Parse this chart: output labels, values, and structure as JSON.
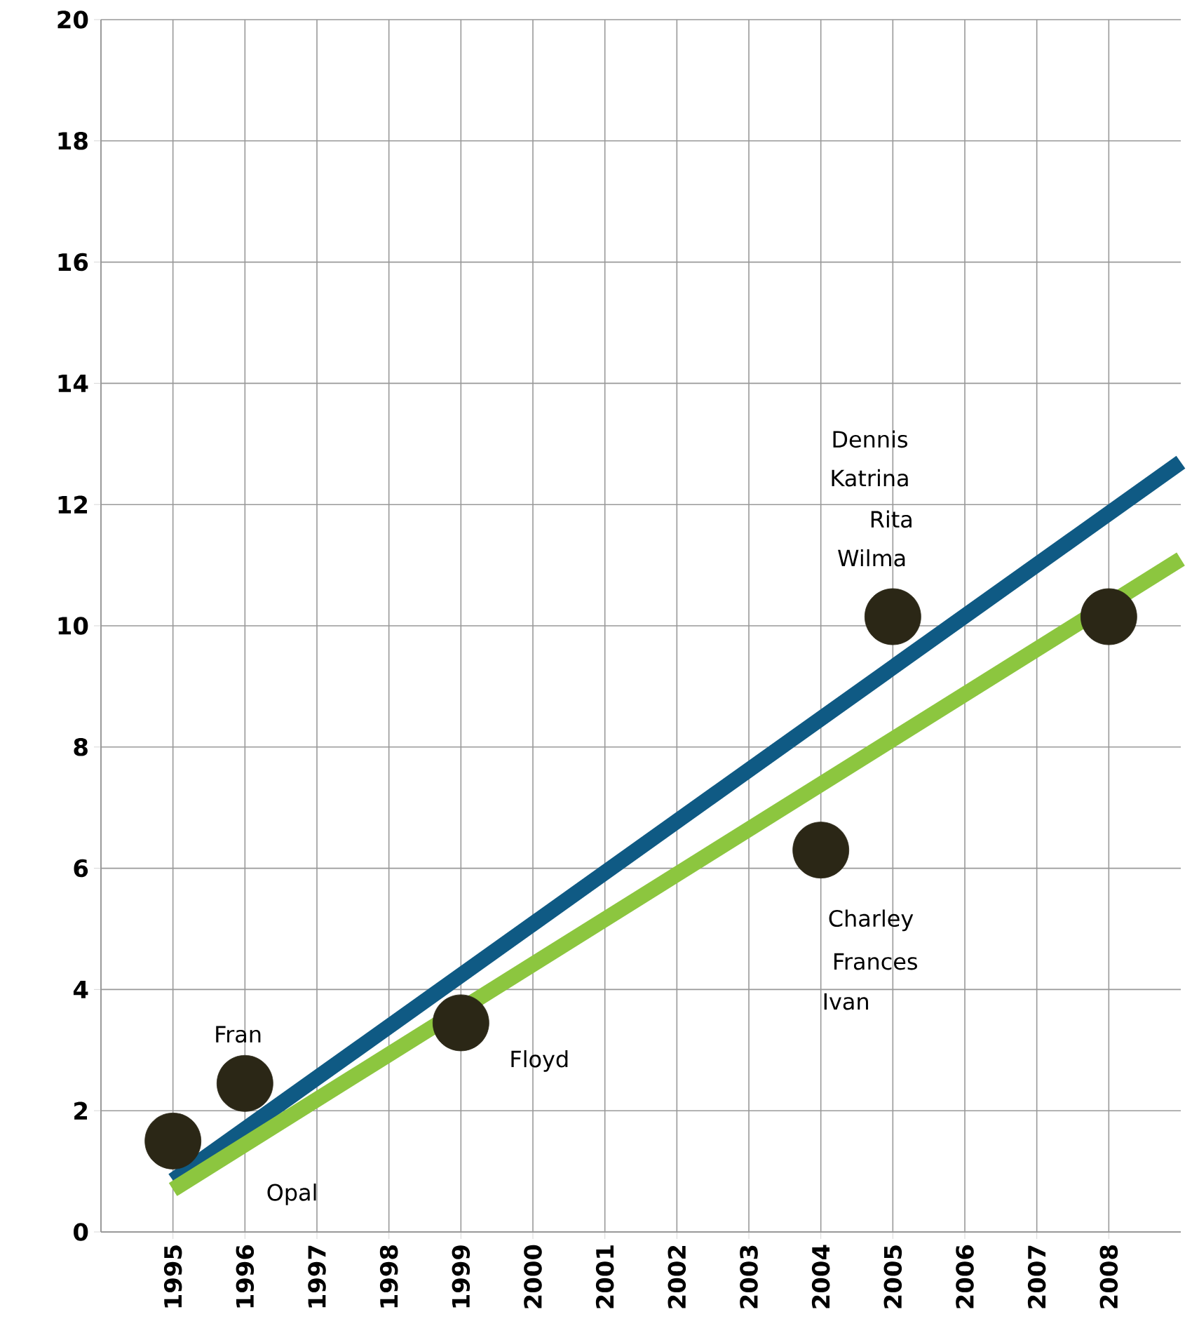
{
  "chart_data": {
    "type": "scatter",
    "color": "#2b2716",
    "marker": "circle",
    "grid": true,
    "xlim": [
      1994,
      2009
    ],
    "xticks": [
      1995,
      1996,
      1997,
      1998,
      1999,
      2000,
      2001,
      2002,
      2003,
      2004,
      2005,
      2006,
      2007,
      2008
    ],
    "ylim": [
      0,
      20
    ],
    "yticks": [
      0,
      2,
      4,
      6,
      8,
      10,
      12,
      14,
      16,
      18,
      20
    ],
    "series": [
      {
        "x": [
          1995,
          1996,
          1999,
          2004,
          2005,
          2008
        ],
        "values": [
          1.5,
          2.45,
          3.45,
          6.3,
          10.15,
          10.15
        ]
      },
      {
        "type": "line",
        "marker": "none",
        "color": "#0f5a84",
        "x": [
          1995,
          2009
        ],
        "values": [
          0.85,
          12.7
        ]
      },
      {
        "type": "line",
        "marker": "none",
        "color": "#8cc63f",
        "x": [
          1995,
          2009
        ],
        "values": [
          0.7,
          11.1
        ]
      }
    ],
    "annotations": [
      "Fran",
      "Opal",
      "Floyd",
      "Dennis",
      "Katrina",
      "Rita",
      "Wilma",
      "Charley",
      "Frances",
      "Ivan"
    ]
  }
}
